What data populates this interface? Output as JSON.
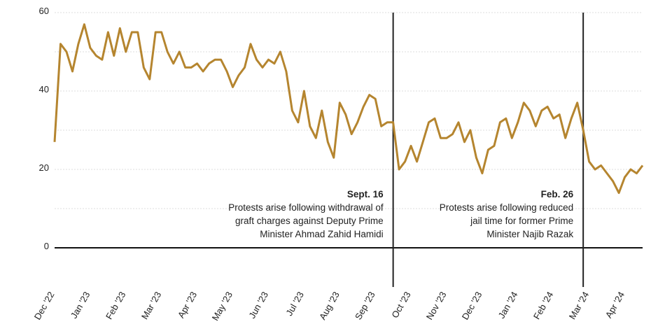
{
  "chart_data": {
    "type": "line",
    "categories": [
      "Dec '22",
      null,
      null,
      null,
      null,
      null,
      "Jan '23",
      null,
      null,
      null,
      null,
      null,
      "Feb '23",
      null,
      null,
      null,
      null,
      null,
      "Mar '23",
      null,
      null,
      null,
      null,
      null,
      "Apr '23",
      null,
      null,
      null,
      null,
      null,
      "May '23",
      null,
      null,
      null,
      null,
      null,
      "Jun '23",
      null,
      null,
      null,
      null,
      null,
      "Jul '23",
      null,
      null,
      null,
      null,
      null,
      "Aug '23",
      null,
      null,
      null,
      null,
      null,
      "Sep '23",
      null,
      null,
      null,
      null,
      null,
      "Oct '23",
      null,
      null,
      null,
      null,
      null,
      "Nov '23",
      null,
      null,
      null,
      null,
      null,
      "Dec '23",
      null,
      null,
      null,
      null,
      null,
      "Jan '24",
      null,
      null,
      null,
      null,
      null,
      "Feb '24",
      null,
      null,
      null,
      null,
      null,
      "Mar '24",
      null,
      null,
      null,
      null,
      null,
      "Apr '24",
      null,
      null,
      null
    ],
    "values": [
      27,
      52,
      50,
      45,
      52,
      57,
      51,
      49,
      48,
      55,
      49,
      56,
      50,
      55,
      55,
      46,
      43,
      55,
      55,
      50,
      47,
      50,
      46,
      46,
      47,
      45,
      47,
      48,
      48,
      45,
      41,
      44,
      46,
      52,
      48,
      46,
      48,
      47,
      50,
      45,
      35,
      32,
      40,
      31,
      28,
      35,
      27,
      23,
      37,
      34,
      29,
      32,
      36,
      39,
      38,
      31,
      32,
      32,
      20,
      22,
      26,
      22,
      27,
      32,
      33,
      28,
      28,
      29,
      32,
      27,
      30,
      23,
      19,
      25,
      26,
      32,
      33,
      28,
      32,
      37,
      35,
      31,
      35,
      36,
      33,
      34,
      28,
      33,
      37,
      30,
      22,
      20,
      21,
      19,
      17,
      14,
      18,
      20,
      19,
      21
    ],
    "color": "#b5852f",
    "ylim": [
      -10,
      60
    ],
    "yticks": [
      0,
      20,
      40,
      60
    ],
    "minor_yticks": [
      10,
      30,
      50
    ],
    "grid": true,
    "annotations": [
      {
        "index": 57,
        "title": "Sept. 16",
        "lines": [
          "Protests arise following withdrawal of",
          "graft charges against Deputy Prime",
          "Minister Ahmad Zahid Hamidi"
        ]
      },
      {
        "index": 89,
        "title": "Feb. 26",
        "lines": [
          "Protests arise following reduced",
          "jail time for former Prime",
          "Minister Najib Razak"
        ]
      }
    ]
  }
}
